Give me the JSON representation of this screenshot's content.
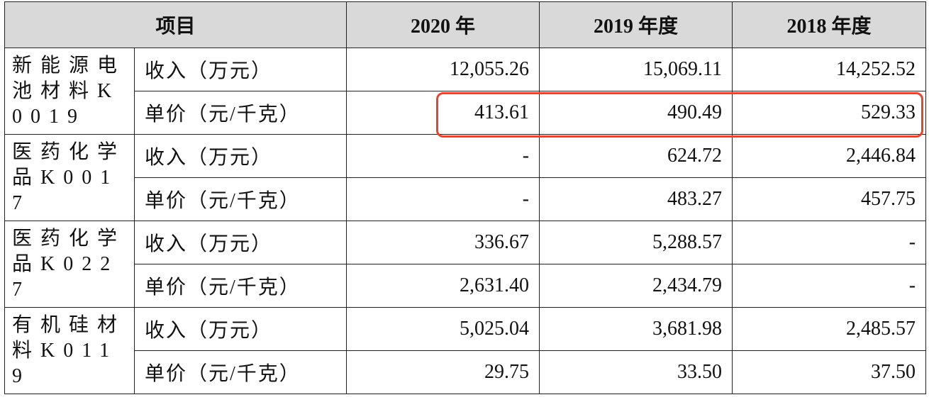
{
  "table": {
    "header": [
      "项目",
      "2020 年",
      "2019 年度",
      "2018 年度"
    ],
    "groups": [
      {
        "name": "新能源电池材料K0019",
        "rows": [
          [
            "收入（万元）",
            "12,055.26",
            "15,069.11",
            "14,252.52"
          ],
          [
            "单价（元/千克）",
            "413.61",
            "490.49",
            "529.33"
          ]
        ]
      },
      {
        "name": "医药化学品K0017",
        "rows": [
          [
            "收入（万元）",
            "-",
            "624.72",
            "2,446.84"
          ],
          [
            "单价（元/千克）",
            "-",
            "483.27",
            "457.75"
          ]
        ]
      },
      {
        "name": "医药化学品K0227",
        "rows": [
          [
            "收入（万元）",
            "336.67",
            "5,288.57",
            "-"
          ],
          [
            "单价（元/千克）",
            "2,631.40",
            "2,434.79",
            "-"
          ]
        ]
      },
      {
        "name": "有机硅材料K0119",
        "rows": [
          [
            "收入（万元）",
            "5,025.04",
            "3,681.98",
            "2,485.57"
          ],
          [
            "单价（元/千克）",
            "29.75",
            "33.50",
            "37.50"
          ]
        ]
      }
    ]
  }
}
